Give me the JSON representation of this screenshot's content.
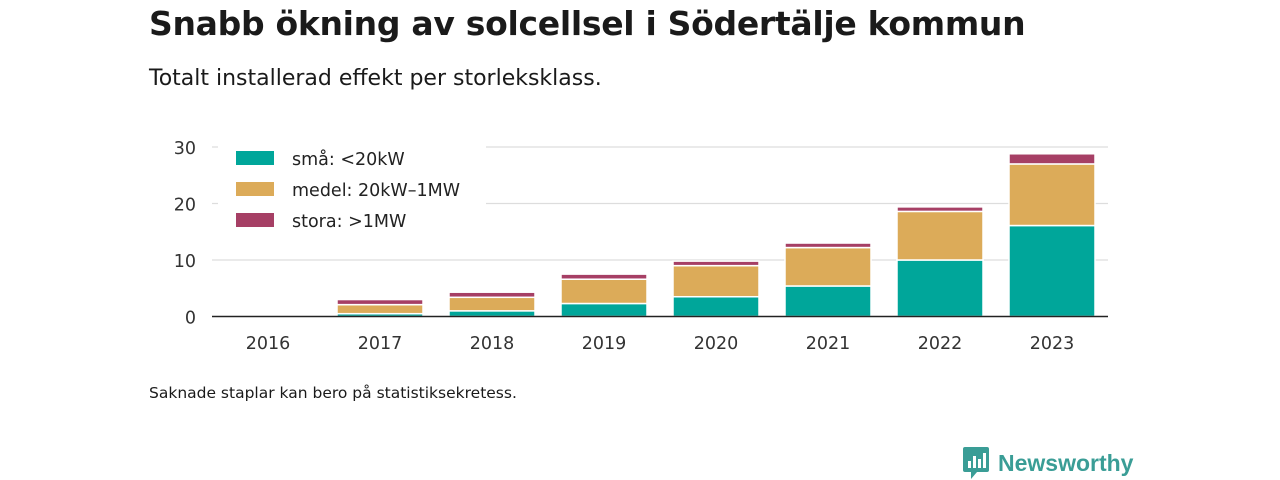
{
  "title": "Snabb ökning av solcellsel i Södertälje kommun",
  "subtitle": "Totalt installerad effekt per storleksklass.",
  "footnote": "Saknade staplar kan bero på statistiksekretess.",
  "brand": {
    "name": "Newsworthy",
    "color": "#3a9d96",
    "icon": "newsworthy-logo-icon"
  },
  "chart_data": {
    "type": "bar",
    "stacked": true,
    "categories": [
      "2016",
      "2017",
      "2018",
      "2019",
      "2020",
      "2021",
      "2022",
      "2023"
    ],
    "series": [
      {
        "name": "små: <20kW",
        "color": "#00a69a",
        "values": [
          0,
          0.5,
          1.0,
          2.3,
          3.5,
          5.4,
          10.0,
          16.1
        ]
      },
      {
        "name": "medel: 20kW–1MW",
        "color": "#dcab59",
        "values": [
          0,
          1.6,
          2.4,
          4.3,
          5.5,
          6.8,
          8.6,
          10.9
        ]
      },
      {
        "name": "stora: >1MW",
        "color": "#a63f65",
        "values": [
          0,
          0.9,
          0.9,
          0.9,
          0.8,
          0.8,
          0.8,
          1.8
        ]
      }
    ],
    "y_ticks": [
      0,
      10,
      20,
      30
    ],
    "ylim": [
      0,
      30.8
    ],
    "grid": true,
    "legend_position": "top-left",
    "xlabel": "",
    "ylabel": ""
  }
}
